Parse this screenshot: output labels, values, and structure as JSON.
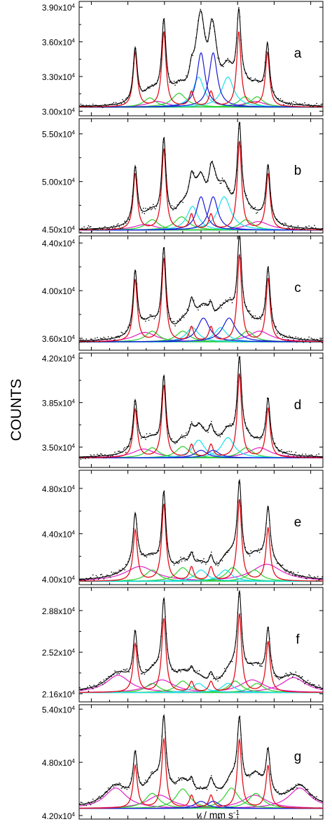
{
  "chart_data": {
    "type": "line",
    "ylabel": "COUNTS",
    "xlabel": {
      "italic": "v",
      "rest": " / mm s",
      "sup": "-1"
    },
    "xlim": [
      -10,
      10
    ],
    "xticks": [
      -9,
      -6,
      -3,
      0,
      3,
      6,
      9
    ],
    "colors": {
      "data": "#000000",
      "envelope": "#000000",
      "sextet": "#e0101a",
      "blue": "#1a1ad8",
      "cyan": "#19e0ec",
      "green": "#2fd02f",
      "magenta": "#e020c8"
    },
    "panels": [
      {
        "letter": "a",
        "ylim": [
          29600,
          39500
        ],
        "yticks": [
          {
            "value": 30000,
            "label": "3.00x10",
            "exp": "4"
          },
          {
            "value": 33000,
            "label": "3.30x10",
            "exp": "4"
          },
          {
            "value": 36000,
            "label": "3.60x10",
            "exp": "4"
          },
          {
            "value": 39000,
            "label": "3.90x10",
            "exp": "4"
          }
        ],
        "baseline": 30350,
        "sextet": {
          "positions": [
            -5.4,
            -3.05,
            -0.78,
            0.82,
            3.1,
            5.45
          ],
          "heights": [
            4700,
            6500,
            1300,
            1300,
            6500,
            4700
          ],
          "width": 0.42
        },
        "blue": [
          {
            "center": 0.0,
            "height": 4700,
            "width": 0.8
          },
          {
            "center": 1.0,
            "height": 4700,
            "width": 0.8
          }
        ],
        "cyan": [
          {
            "center": -0.2,
            "height": 2600,
            "width": 1.1
          },
          {
            "center": 2.2,
            "height": 2600,
            "width": 1.2
          }
        ],
        "green": [
          {
            "center": -4.2,
            "height": 800,
            "width": 1.2
          },
          {
            "center": -1.8,
            "height": 1200,
            "width": 1.4
          },
          {
            "center": 3.6,
            "height": 900,
            "width": 1.2
          },
          {
            "center": 4.6,
            "height": 900,
            "width": 1.2
          }
        ],
        "magenta": [
          {
            "center": -3.6,
            "height": 500,
            "width": 2.0
          },
          {
            "center": 4.4,
            "height": 500,
            "width": 2.0
          }
        ],
        "noise": 250
      },
      {
        "letter": "b",
        "ylim": [
          44600,
          56600
        ],
        "yticks": [
          {
            "value": 45000,
            "label": "4.50x10",
            "exp": "4"
          },
          {
            "value": 50000,
            "label": "5.00x10",
            "exp": "4"
          },
          {
            "value": 55000,
            "label": "5.50x10",
            "exp": "4"
          }
        ],
        "baseline": 44900,
        "sextet": {
          "positions": [
            -5.4,
            -3.05,
            -0.78,
            0.82,
            3.15,
            5.5
          ],
          "heights": [
            5900,
            8500,
            1600,
            1600,
            9300,
            5900
          ],
          "width": 0.42
        },
        "blue": [
          {
            "center": 0.0,
            "height": 3500,
            "width": 0.9
          },
          {
            "center": 1.0,
            "height": 3500,
            "width": 0.9
          }
        ],
        "cyan": [
          {
            "center": -0.7,
            "height": 2500,
            "width": 1.1
          },
          {
            "center": 1.9,
            "height": 3500,
            "width": 1.3
          }
        ],
        "green": [
          {
            "center": -4.0,
            "height": 1100,
            "width": 1.3
          },
          {
            "center": -1.6,
            "height": 1400,
            "width": 1.4
          },
          {
            "center": 3.7,
            "height": 1100,
            "width": 1.3
          }
        ],
        "magenta": [
          {
            "center": -4.6,
            "height": 600,
            "width": 2.2
          },
          {
            "center": 4.7,
            "height": 900,
            "width": 2.2
          }
        ],
        "noise": 350
      },
      {
        "letter": "c",
        "ylim": [
          35000,
          44600
        ],
        "yticks": [
          {
            "value": 36000,
            "label": "3.60x10",
            "exp": "4"
          },
          {
            "value": 40000,
            "label": "4.00x10",
            "exp": "4"
          },
          {
            "value": 44000,
            "label": "4.40x10",
            "exp": "4"
          }
        ],
        "baseline": 35700,
        "sextet": {
          "positions": [
            -5.4,
            -3.05,
            -0.78,
            0.82,
            3.15,
            5.5
          ],
          "heights": [
            5200,
            7000,
            1200,
            1200,
            7300,
            5300
          ],
          "width": 0.42
        },
        "blue": [
          {
            "center": 0.2,
            "height": 2000,
            "width": 1.2
          },
          {
            "center": 2.3,
            "height": 2000,
            "width": 1.3
          }
        ],
        "cyan": [
          {
            "center": -0.7,
            "height": 1200,
            "width": 1.2
          },
          {
            "center": 1.6,
            "height": 1200,
            "width": 1.2
          }
        ],
        "green": [
          {
            "center": -4.0,
            "height": 900,
            "width": 1.3
          },
          {
            "center": -1.5,
            "height": 900,
            "width": 1.3
          },
          {
            "center": 3.8,
            "height": 900,
            "width": 1.3
          }
        ],
        "magenta": [
          {
            "center": -4.6,
            "height": 800,
            "width": 2.2
          },
          {
            "center": 4.8,
            "height": 900,
            "width": 2.2
          }
        ],
        "noise": 280
      },
      {
        "letter": "d",
        "ylim": [
          33400,
          42400
        ],
        "yticks": [
          {
            "value": 35000,
            "label": "3.50x10",
            "exp": "4"
          },
          {
            "value": 38500,
            "label": "3.85x10",
            "exp": "4"
          },
          {
            "value": 42000,
            "label": "4.20x10",
            "exp": "4"
          }
        ],
        "baseline": 34150,
        "sextet": {
          "positions": [
            -5.4,
            -3.05,
            -0.78,
            0.82,
            3.15,
            5.5
          ],
          "heights": [
            3800,
            5700,
            1000,
            1000,
            6600,
            3900
          ],
          "width": 0.42
        },
        "blue": [
          {
            "center": 0.0,
            "height": 600,
            "width": 1.2
          },
          {
            "center": 1.0,
            "height": 600,
            "width": 1.2
          }
        ],
        "cyan": [
          {
            "center": -0.2,
            "height": 1400,
            "width": 1.2
          },
          {
            "center": 2.2,
            "height": 1600,
            "width": 1.3
          }
        ],
        "green": [
          {
            "center": -4.0,
            "height": 800,
            "width": 1.3
          },
          {
            "center": -1.5,
            "height": 900,
            "width": 1.3
          },
          {
            "center": 3.7,
            "height": 800,
            "width": 1.3
          }
        ],
        "magenta": [
          {
            "center": -4.7,
            "height": 700,
            "width": 2.2
          },
          {
            "center": 4.8,
            "height": 800,
            "width": 2.2
          }
        ],
        "noise": 250
      },
      {
        "letter": "e",
        "ylim": [
          39500,
          49600
        ],
        "yticks": [
          {
            "value": 40000,
            "label": "4.00x10",
            "exp": "4"
          },
          {
            "value": 44000,
            "label": "4.40x10",
            "exp": "4"
          },
          {
            "value": 48000,
            "label": "4.80x10",
            "exp": "4"
          }
        ],
        "baseline": 39800,
        "sextet": {
          "positions": [
            -5.4,
            -3.05,
            -0.78,
            0.82,
            3.15,
            5.5
          ],
          "heights": [
            4500,
            6800,
            1200,
            1200,
            7200,
            4700
          ],
          "width": 0.42
        },
        "blue": [],
        "cyan": [
          {
            "center": 0.0,
            "height": 1000,
            "width": 1.2
          },
          {
            "center": 2.0,
            "height": 1000,
            "width": 1.2
          }
        ],
        "green": [
          {
            "center": -4.0,
            "height": 1000,
            "width": 1.3
          },
          {
            "center": -1.5,
            "height": 1200,
            "width": 1.3
          },
          {
            "center": 2.6,
            "height": 1200,
            "width": 1.3
          },
          {
            "center": 4.4,
            "height": 1000,
            "width": 1.3
          }
        ],
        "magenta": [
          {
            "center": -5.0,
            "height": 1300,
            "width": 3.0
          },
          {
            "center": 5.4,
            "height": 1500,
            "width": 3.0
          }
        ],
        "noise": 300
      },
      {
        "letter": "f",
        "ylim": [
          20900,
          30800
        ],
        "yticks": [
          {
            "value": 21600,
            "label": "2.16x10",
            "exp": "4"
          },
          {
            "value": 25200,
            "label": "2.52x10",
            "exp": "4"
          },
          {
            "value": 28800,
            "label": "2.88x10",
            "exp": "4"
          }
        ],
        "baseline": 21700,
        "sextet": {
          "positions": [
            -5.4,
            -3.05,
            -0.78,
            0.82,
            3.15,
            5.5
          ],
          "heights": [
            4200,
            6400,
            900,
            900,
            6800,
            4400
          ],
          "width": 0.42
        },
        "blue": [],
        "cyan": [
          {
            "center": -0.2,
            "height": 800,
            "width": 1.2
          },
          {
            "center": 2.2,
            "height": 800,
            "width": 1.2
          }
        ],
        "green": [
          {
            "center": -4.0,
            "height": 800,
            "width": 1.3
          },
          {
            "center": -1.5,
            "height": 1000,
            "width": 1.3
          },
          {
            "center": 2.8,
            "height": 1000,
            "width": 1.3
          },
          {
            "center": 4.6,
            "height": 800,
            "width": 1.3
          }
        ],
        "magenta": [
          {
            "center": -6.8,
            "height": 1500,
            "width": 2.4
          },
          {
            "center": -3.2,
            "height": 1100,
            "width": 2.4
          },
          {
            "center": 4.2,
            "height": 1100,
            "width": 2.4
          },
          {
            "center": 7.6,
            "height": 1300,
            "width": 2.4
          }
        ],
        "noise": 280
      },
      {
        "letter": "g",
        "ylim": [
          41600,
          54500
        ],
        "yticks": [
          {
            "value": 42000,
            "label": "4.20x10",
            "exp": "4"
          },
          {
            "value": 48000,
            "label": "4.80x10",
            "exp": "4"
          },
          {
            "value": 54000,
            "label": "5.40x10",
            "exp": "4"
          }
        ],
        "baseline": 42800,
        "sextet": {
          "positions": [
            -5.4,
            -3.05,
            -0.78,
            0.82,
            3.15,
            5.5
          ],
          "heights": [
            4800,
            7800,
            1400,
            1400,
            7700,
            4800
          ],
          "width": 0.42
        },
        "blue": [
          {
            "center": 0.0,
            "height": 800,
            "width": 1.2
          },
          {
            "center": 1.0,
            "height": 800,
            "width": 1.2
          }
        ],
        "cyan": [],
        "green": [
          {
            "center": -4.0,
            "height": 1700,
            "width": 1.4
          },
          {
            "center": -1.5,
            "height": 2200,
            "width": 1.4
          },
          {
            "center": 2.5,
            "height": 2300,
            "width": 1.4
          },
          {
            "center": 4.5,
            "height": 1700,
            "width": 1.4
          }
        ],
        "magenta": [
          {
            "center": -7.0,
            "height": 2300,
            "width": 2.2
          },
          {
            "center": -3.4,
            "height": 1500,
            "width": 2.4
          },
          {
            "center": 4.4,
            "height": 1500,
            "width": 2.4
          },
          {
            "center": 8.1,
            "height": 2300,
            "width": 2.2
          }
        ],
        "noise": 320
      }
    ]
  }
}
